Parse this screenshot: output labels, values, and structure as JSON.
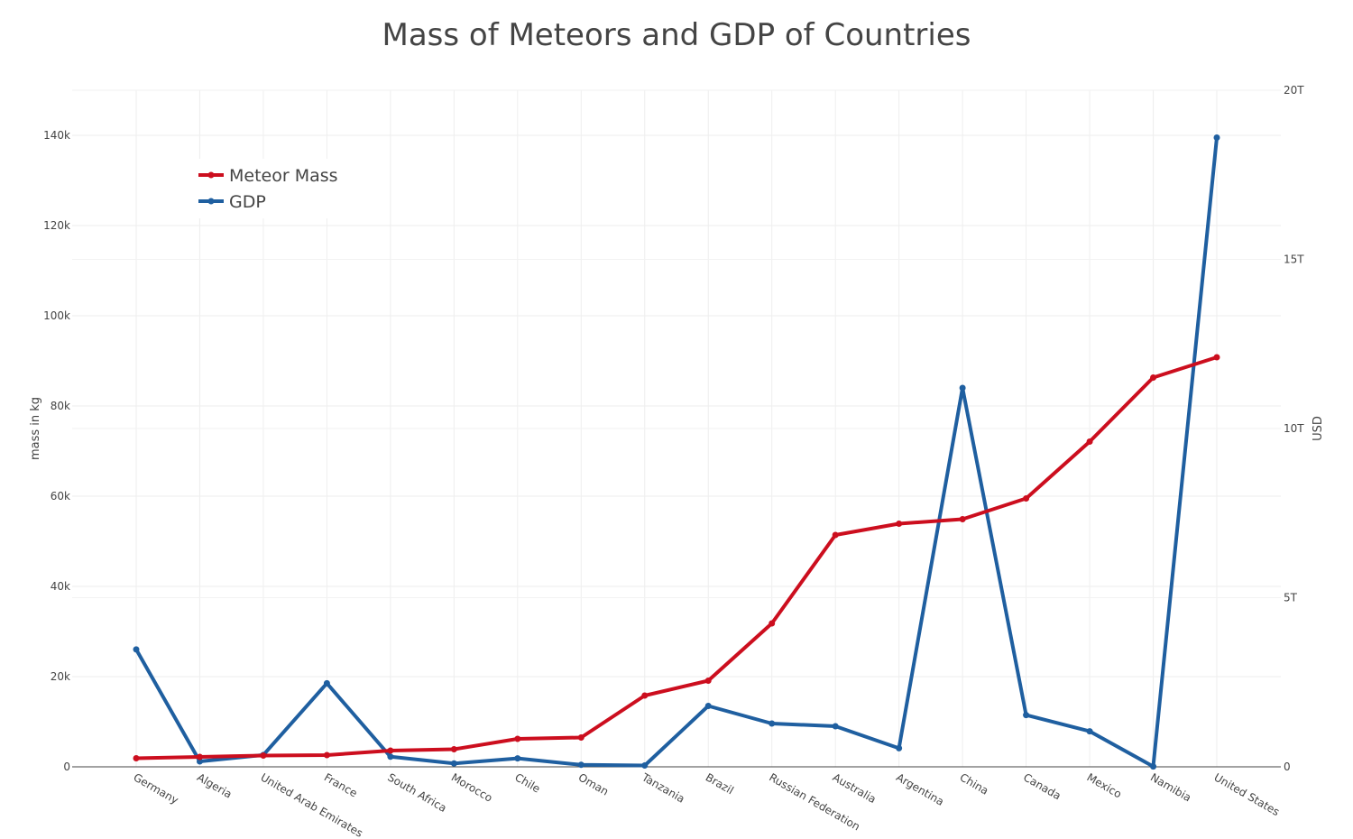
{
  "chart_data": {
    "type": "line",
    "title": "Mass of Meteors and GDP of Countries",
    "categories": [
      "Germany",
      "Algeria",
      "United Arab Emirates",
      "France",
      "South Africa",
      "Morocco",
      "Chile",
      "Oman",
      "Tanzania",
      "Brazil",
      "Russian Federation",
      "Australia",
      "Argentina",
      "China",
      "Canada",
      "Mexico",
      "Namibia",
      "United States"
    ],
    "y_left": {
      "label": "mass in kg",
      "range": [
        0,
        150000
      ],
      "ticks": [
        0,
        20000,
        40000,
        60000,
        80000,
        100000,
        120000,
        140000
      ],
      "tick_labels": [
        "0",
        "20k",
        "40k",
        "60k",
        "80k",
        "100k",
        "120k",
        "140k"
      ]
    },
    "y_right": {
      "label": "USD",
      "range": [
        0,
        20000000000000
      ],
      "ticks": [
        0,
        5000000000000,
        10000000000000,
        15000000000000,
        20000000000000
      ],
      "tick_labels": [
        "0",
        "5T",
        "10T",
        "15T",
        "20T"
      ]
    },
    "series": [
      {
        "name": "Meteor Mass",
        "axis": "left",
        "color": "#cc0e1e",
        "values": [
          1900,
          2200,
          2500,
          2600,
          3600,
          3900,
          6200,
          6500,
          15800,
          19100,
          31800,
          51400,
          53900,
          54900,
          59500,
          72100,
          86300,
          90800
        ]
      },
      {
        "name": "GDP",
        "axis": "right",
        "color": "#1f5fa0",
        "values": [
          3470000000000,
          160000000000,
          350000000000,
          2470000000000,
          300000000000,
          100000000000,
          250000000000,
          60000000000,
          40000000000,
          1800000000000,
          1280000000000,
          1200000000000,
          550000000000,
          11200000000000,
          1530000000000,
          1050000000000,
          10000000000,
          18600000000000
        ]
      }
    ],
    "grid": true,
    "legend_position": "top-left"
  }
}
